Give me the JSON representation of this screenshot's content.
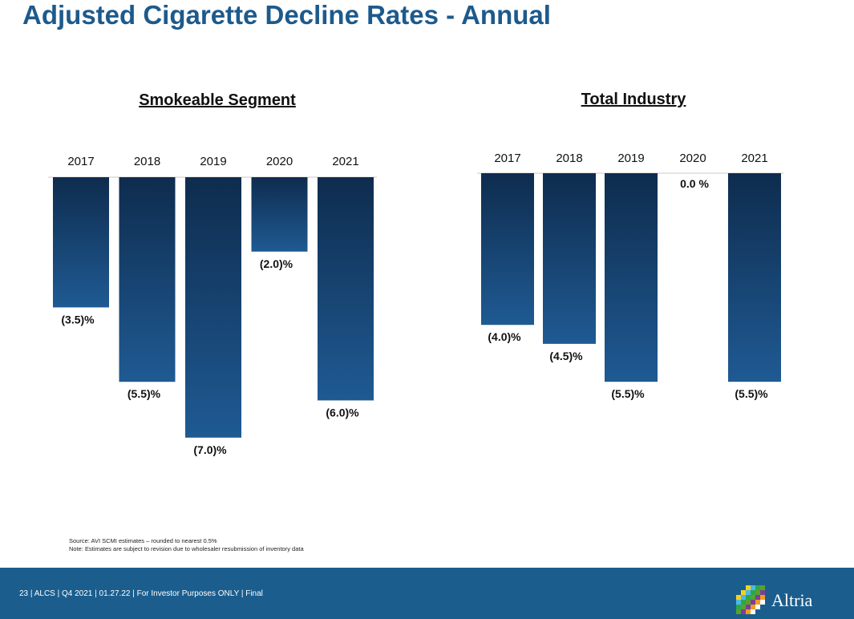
{
  "title": "Adjusted Cigarette Decline Rates - Annual",
  "chart_data": [
    {
      "type": "bar",
      "title": "Smokeable Segment",
      "categories": [
        "2017",
        "2018",
        "2019",
        "2020",
        "2021"
      ],
      "values": [
        -3.5,
        -5.5,
        -7.0,
        -2.0,
        -6.0
      ],
      "data_labels": [
        "(3.5)%",
        "(5.5)%",
        "(7.0)%",
        "(2.0)%",
        "(6.0)%"
      ],
      "ylim": [
        -7.0,
        0
      ],
      "xlabel": "",
      "ylabel": ""
    },
    {
      "type": "bar",
      "title": "Total Industry",
      "categories": [
        "2017",
        "2018",
        "2019",
        "2020",
        "2021"
      ],
      "values": [
        -4.0,
        -4.5,
        -5.5,
        0.0,
        -5.5
      ],
      "data_labels": [
        "(4.0)%",
        "(4.5)%",
        "(5.5)%",
        "0.0 %",
        "(5.5)%"
      ],
      "ylim": [
        -5.5,
        0
      ],
      "xlabel": "",
      "ylabel": ""
    }
  ],
  "notes": {
    "source": "Source: AVI SCMI estimates – rounded to nearest 0.5%",
    "note": "Note: Estimates are subject to revision due to wholesaler resubmission of inventory data"
  },
  "footer": {
    "text": "23 | ALCS | Q4 2021 | 01.27.22 | For Investor Purposes ONLY | Final",
    "logo_text": "Altria"
  },
  "colors": {
    "title": "#1d5a8c",
    "bar_top": "#0e2c4e",
    "bar_bottom": "#1f5a93",
    "footer": "#1b5e8e"
  }
}
